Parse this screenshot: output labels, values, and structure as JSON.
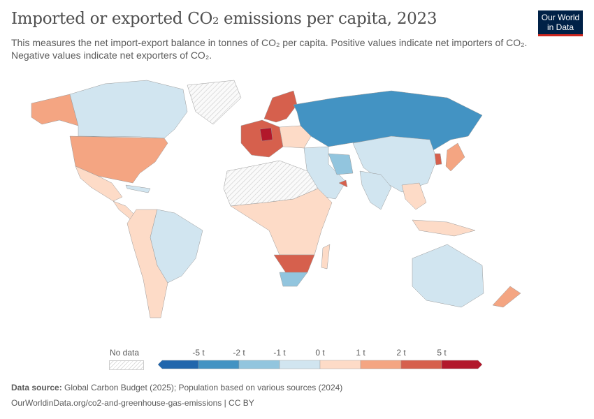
{
  "header": {
    "title": "Imported or exported CO₂ emissions per capita, 2023",
    "subtitle": "This measures the net import-export balance in tonnes of CO₂ per capita. Positive values indicate net importers of CO₂. Negative values indicate net exporters of CO₂.",
    "logo": "Our World in Data"
  },
  "legend": {
    "no_data": "No data",
    "ticks": [
      "-5 t",
      "-2 t",
      "-1 t",
      "0 t",
      "1 t",
      "2 t",
      "5 t"
    ],
    "colors": [
      "#2166ac",
      "#4393c3",
      "#92c5de",
      "#d1e5f0",
      "#fddbc7",
      "#f4a582",
      "#d6604d",
      "#b2182b"
    ],
    "no_data_pattern": "hatched-grey"
  },
  "footer": {
    "source_label": "Data source:",
    "source": "Global Carbon Budget (2025); Population based on various sources (2024)",
    "url": "OurWorldinData.org/co2-and-greenhouse-gas-emissions | CC BY"
  }
}
